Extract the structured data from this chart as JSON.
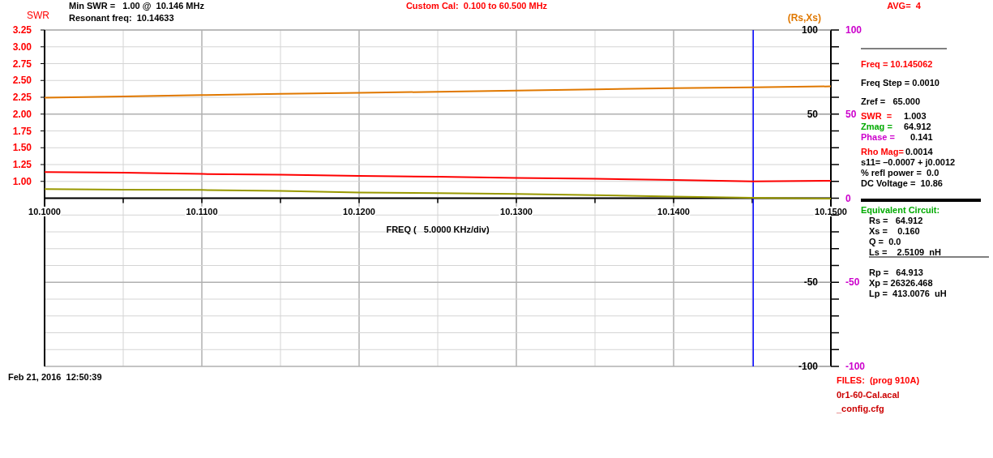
{
  "chart_data": {
    "type": "line",
    "xlabel": "FREQ (   5.0000 KHz/div)",
    "x": [
      10.1,
      10.105,
      10.11,
      10.115,
      10.12,
      10.125,
      10.13,
      10.135,
      10.14,
      10.145,
      10.15
    ],
    "xlim": [
      10.1,
      10.15
    ],
    "xticks": [
      {
        "value": 10.1,
        "label": "10.1000"
      },
      {
        "value": 10.105,
        "label": null
      },
      {
        "value": 10.11,
        "label": "10.1100"
      },
      {
        "value": 10.115,
        "label": null
      },
      {
        "value": 10.12,
        "label": "10.1200"
      },
      {
        "value": 10.125,
        "label": null
      },
      {
        "value": 10.13,
        "label": "10.1300"
      },
      {
        "value": 10.135,
        "label": null
      },
      {
        "value": 10.14,
        "label": "10.1400"
      },
      {
        "value": 10.145,
        "label": null
      },
      {
        "value": 10.15,
        "label": "10.1500"
      }
    ],
    "ylim": [
      -1.75,
      3.25
    ],
    "yticks": [
      {
        "value": 1,
        "label": "1.00"
      },
      {
        "value": 1.25,
        "label": "1.25"
      },
      {
        "value": 1.5,
        "label": "1.50"
      },
      {
        "value": 1.75,
        "label": "1.75"
      },
      {
        "value": 2,
        "label": "2.00"
      },
      {
        "value": 2.25,
        "label": "2.25"
      },
      {
        "value": 2.5,
        "label": "2.50"
      },
      {
        "value": 2.75,
        "label": "2.75"
      },
      {
        "value": 3,
        "label": "3.00"
      },
      {
        "value": 3.25,
        "label": "3.25"
      }
    ],
    "y2lim": [
      -100,
      100
    ],
    "y2ticks": [
      100,
      {
        "value": 90,
        "label": null
      },
      {
        "value": 80,
        "label": null
      },
      {
        "value": 70,
        "label": null
      },
      {
        "value": 60,
        "label": null
      },
      50,
      {
        "value": 40,
        "label": null
      },
      {
        "value": 30,
        "label": null
      },
      {
        "value": 20,
        "label": null
      },
      {
        "value": 10,
        "label": null
      },
      {
        "value": 0,
        "label": null
      },
      {
        "value": -10,
        "label": null
      },
      {
        "value": -20,
        "label": null
      },
      {
        "value": -30,
        "label": null
      },
      {
        "value": -40,
        "label": null
      },
      -50,
      {
        "value": -60,
        "label": null
      },
      {
        "value": -70,
        "label": null
      },
      {
        "value": -80,
        "label": null
      },
      {
        "value": -90,
        "label": null
      },
      -100
    ],
    "y3lim": [
      -100,
      100
    ],
    "y3ticks": [
      100,
      50,
      0,
      -50,
      -100
    ],
    "grid": true,
    "y2label": "(Rs,Xs)",
    "series": [
      {
        "name": "SWR",
        "color": "#ff0000",
        "values": [
          1.14,
          1.13,
          1.11,
          1.1,
          1.08,
          1.07,
          1.05,
          1.04,
          1.02,
          1.0,
          1.01
        ]
      },
      {
        "color": "#e07800",
        "axis": "y2",
        "values": [
          59.8,
          60.5,
          61.3,
          62.0,
          62.6,
          63.3,
          64.0,
          64.7,
          65.4,
          65.9,
          66.5
        ]
      },
      {
        "color": "#999900",
        "axis": "y2",
        "values": [
          5.4,
          5.1,
          4.9,
          4.3,
          3.4,
          3.0,
          2.5,
          1.8,
          1.0,
          0.2,
          -0.3
        ]
      }
    ],
    "ref_lines": [
      {
        "axis": "x",
        "value": 10.145062,
        "color": "#0000ff"
      }
    ],
    "annotations": [
      "Min SWR =   1.00 @  10.146 MHz",
      "Resonant freq:  10.14633",
      "Custom Cal:  0.100 to 60.500 MHz",
      "AVG=  4",
      "Freq = 10.145062",
      "Freq Step = 0.0010",
      "Zref =   65.000",
      "SWR  =",
      "1.003",
      "Zmag =",
      "64.912",
      "Phase =",
      "0.141",
      "Rho Mag=",
      "0.0014",
      "s11= –0.0007 + j0.0012",
      "% refl power =  0.0",
      "DC Voltage =  10.86",
      "Equivalent Circuit:",
      "Rs =   64.912",
      "Xs =    0.160",
      "Q =  0.0",
      "Ls =    2.5109  nH",
      "Rp =   64.913",
      "Xp = 26326.468",
      "Lp =  413.0076  uH",
      "Feb 21, 2016  12:50:39",
      "FILES:  (prog 910A)",
      "0r1-60-Cal.acal",
      "_config.cfg"
    ]
  }
}
